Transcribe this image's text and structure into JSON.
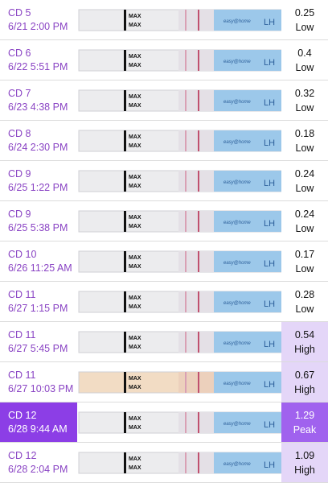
{
  "strip": {
    "arrow_label": "MAX",
    "brand": "easy@home",
    "hormone": "LH"
  },
  "rows": [
    {
      "day": "CD 5",
      "time": "6/21 2:00 PM",
      "value": 0.25,
      "level": "Low"
    },
    {
      "day": "CD 6",
      "time": "6/22 5:51 PM",
      "value": 0.4,
      "level": "Low"
    },
    {
      "day": "CD 7",
      "time": "6/23 4:38 PM",
      "value": 0.32,
      "level": "Low"
    },
    {
      "day": "CD 8",
      "time": "6/24 2:30 PM",
      "value": 0.18,
      "level": "Low"
    },
    {
      "day": "CD 9",
      "time": "6/25 1:22 PM",
      "value": 0.24,
      "level": "Low"
    },
    {
      "day": "CD 9",
      "time": "6/25 5:38 PM",
      "value": 0.24,
      "level": "Low"
    },
    {
      "day": "CD 10",
      "time": "6/26 11:25 AM",
      "value": 0.17,
      "level": "Low"
    },
    {
      "day": "CD 11",
      "time": "6/27 1:15 PM",
      "value": 0.28,
      "level": "Low"
    },
    {
      "day": "CD 11",
      "time": "6/27 5:45 PM",
      "value": 0.54,
      "level": "High"
    },
    {
      "day": "CD 11",
      "time": "6/27 10:03 PM",
      "value": 0.67,
      "level": "High"
    },
    {
      "day": "CD 12",
      "time": "6/28 9:44 AM",
      "value": 1.29,
      "level": "Peak"
    },
    {
      "day": "CD 12",
      "time": "6/28 2:04 PM",
      "value": 1.09,
      "level": "High"
    }
  ]
}
